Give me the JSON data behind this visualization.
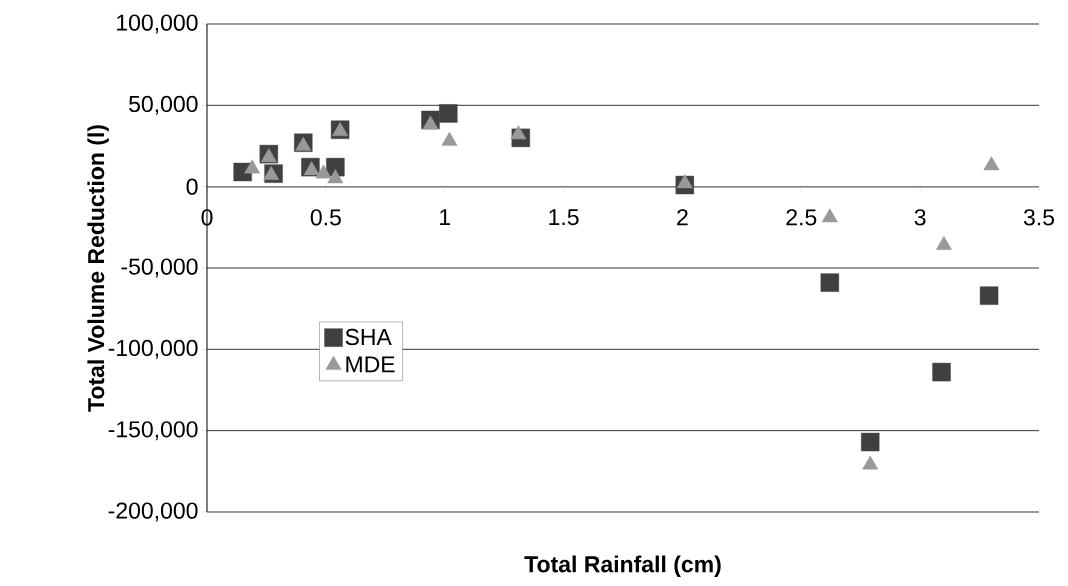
{
  "chart_data": {
    "type": "scatter",
    "xlabel": "Total Rainfall (cm)",
    "ylabel": "Total Volume Reduction (l)",
    "xlim": [
      0,
      3.5
    ],
    "xticks": [
      0,
      0.5,
      1,
      1.5,
      2,
      2.5,
      3,
      3.5
    ],
    "ylim": [
      -200000,
      100000
    ],
    "yticks": [
      {
        "value": -200000,
        "label": "-200,000"
      },
      {
        "value": -150000,
        "label": "-150,000"
      },
      {
        "value": -100000,
        "label": "-100,000"
      },
      {
        "value": -50000,
        "label": "-50,000"
      },
      {
        "value": 0,
        "label": "0"
      },
      {
        "value": 50000,
        "label": "50,000"
      },
      {
        "value": 100000,
        "label": "100,000"
      }
    ],
    "grid": "y",
    "legend": "left",
    "series": [
      {
        "name": "SHA",
        "color": "#404040",
        "marker": "square",
        "x": [
          0.15,
          0.26,
          0.28,
          0.405,
          0.435,
          0.54,
          0.56,
          0.94,
          1.015,
          1.32,
          2.01,
          2.62,
          2.79,
          3.09,
          3.29
        ],
        "values": [
          9000,
          20000,
          8000,
          27000,
          12000,
          12000,
          35000,
          41000,
          45000,
          30000,
          1000,
          -59000,
          -157000,
          -114000,
          -67000
        ]
      },
      {
        "name": "MDE",
        "color": "#999999",
        "marker": "triangle",
        "x": [
          0.19,
          0.26,
          0.27,
          0.405,
          0.44,
          0.49,
          0.54,
          0.56,
          0.94,
          1.02,
          1.31,
          2.01,
          2.62,
          2.79,
          3.1,
          3.3
        ],
        "values": [
          11000,
          18000,
          7000,
          25000,
          10000,
          8000,
          5000,
          34000,
          38000,
          28000,
          32000,
          2000,
          -19000,
          -171000,
          -36000,
          13000
        ]
      }
    ]
  }
}
